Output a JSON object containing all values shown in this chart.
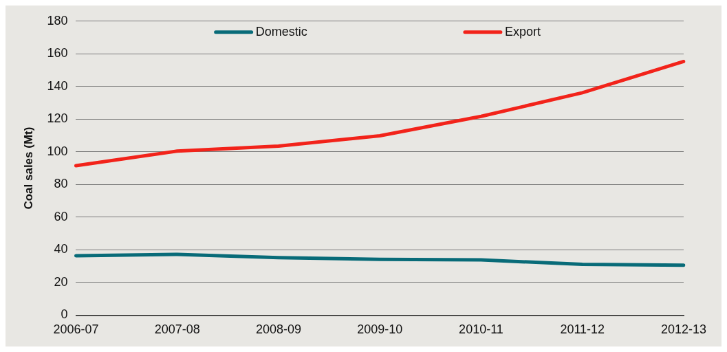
{
  "chart_data": {
    "type": "line",
    "ylabel": "Coal sales (Mt)",
    "categories": [
      "2006-07",
      "2007-08",
      "2008-09",
      "2009-10",
      "2010-11",
      "2011-12",
      "2012-13"
    ],
    "series": [
      {
        "name": "Domestic",
        "color": "#086b78",
        "values": [
          36.4,
          37.2,
          35.2,
          34.2,
          33.8,
          31.1,
          30.6
        ]
      },
      {
        "name": "Export",
        "color": "#f2231a",
        "values": [
          91.5,
          100.5,
          103.5,
          109.8,
          121.7,
          136.2,
          155.3
        ]
      }
    ],
    "ylim": [
      0,
      180
    ],
    "yticks": [
      0,
      20,
      40,
      60,
      80,
      100,
      120,
      140,
      160,
      180
    ],
    "grid": "y",
    "legend": "top",
    "marker": "none",
    "line_style": "solid"
  }
}
